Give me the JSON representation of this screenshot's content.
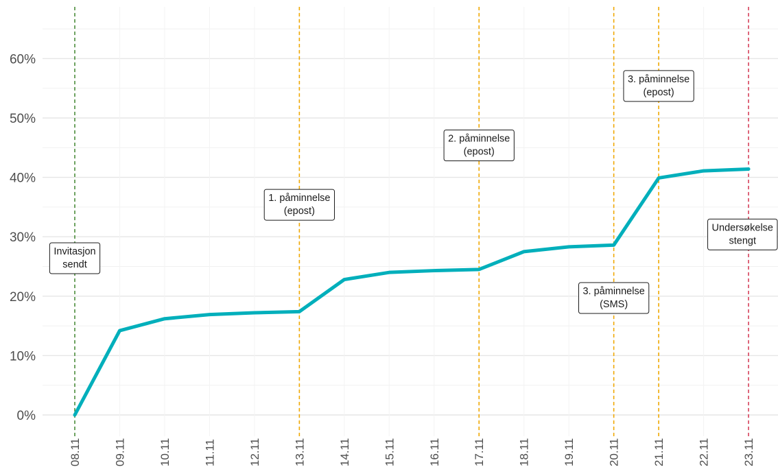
{
  "chart_data": {
    "type": "line",
    "title": "",
    "xlabel": "",
    "ylabel": "",
    "x": [
      "08.11",
      "09.11",
      "10.11",
      "11.11",
      "12.11",
      "13.11",
      "14.11",
      "15.11",
      "16.11",
      "17.11",
      "18.11",
      "19.11",
      "20.11",
      "21.11",
      "22.11",
      "23.11"
    ],
    "series": [
      {
        "values": [
          0.0,
          14.2,
          16.2,
          16.9,
          17.2,
          17.4,
          22.8,
          24.0,
          24.3,
          24.5,
          27.5,
          28.3,
          28.6,
          39.9,
          41.1,
          41.4
        ],
        "color": "#00AFBB"
      }
    ],
    "ylim": [
      -3.5,
      68
    ],
    "y_ticks": [
      0,
      10,
      20,
      30,
      40,
      50,
      60
    ],
    "y_tick_labels": [
      "0%",
      "10%",
      "20%",
      "30%",
      "40%",
      "50%",
      "60%"
    ],
    "grid": true,
    "legend": "none",
    "event_lines": [
      {
        "x": "08.11",
        "color": "#4a8c3a"
      },
      {
        "x": "13.11",
        "color": "#f0a800"
      },
      {
        "x": "17.11",
        "color": "#f0a800"
      },
      {
        "x": "20.11",
        "color": "#f0a800"
      },
      {
        "x": "21.11",
        "color": "#f0a800"
      },
      {
        "x": "23.11",
        "color": "#d6405a"
      }
    ],
    "annotations": [
      {
        "x": "08.11",
        "y": 26.5,
        "lines": [
          "Invitasjon",
          "sendt"
        ]
      },
      {
        "x": "13.11",
        "y": 35.5,
        "lines": [
          "1. påminnelse",
          "(epost)"
        ]
      },
      {
        "x": "17.11",
        "y": 45.5,
        "lines": [
          "2. påminnelse",
          "(epost)"
        ]
      },
      {
        "x": "20.11",
        "y": 19.8,
        "lines": [
          "3. påminnelse",
          "(SMS)"
        ]
      },
      {
        "x": "21.11",
        "y": 55.5,
        "lines": [
          "3. påminnelse",
          "(epost)"
        ]
      },
      {
        "x": "23.11",
        "y": 30.5,
        "lines": [
          "Undersøkelse",
          "stengt"
        ]
      }
    ]
  }
}
